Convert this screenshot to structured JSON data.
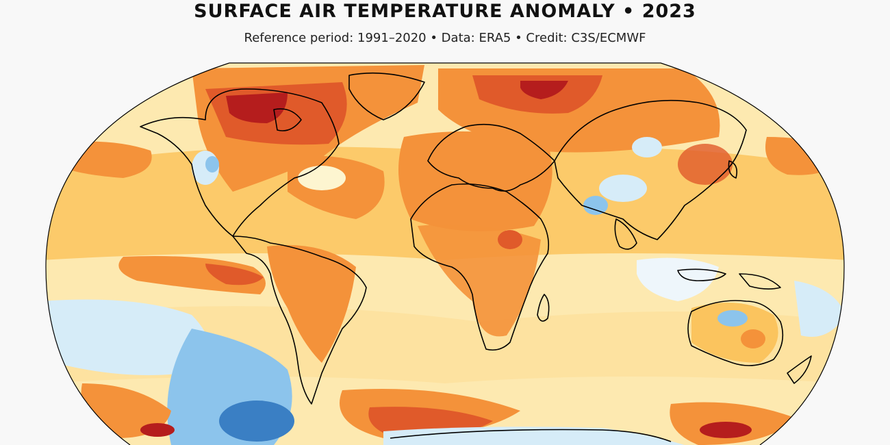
{
  "header": {
    "title": "SURFACE AIR TEMPERATURE ANOMALY • 2023",
    "subtitle": "Reference period: 1991–2020 • Data: ERA5 • Credit: C3S/ECMWF"
  },
  "map": {
    "projection": "robinson-like global",
    "variable": "surface air temperature anomaly",
    "year": "2023",
    "anomaly_color_scale": [
      "#3a7fc4",
      "#8cc4ec",
      "#d6ecf8",
      "#fdf5d0",
      "#fde0a0",
      "#fbc060",
      "#f4923a",
      "#e05a2a",
      "#b51d1d"
    ],
    "land_outline_color": "#000000",
    "ocean_background_color": "#fde9b0"
  }
}
